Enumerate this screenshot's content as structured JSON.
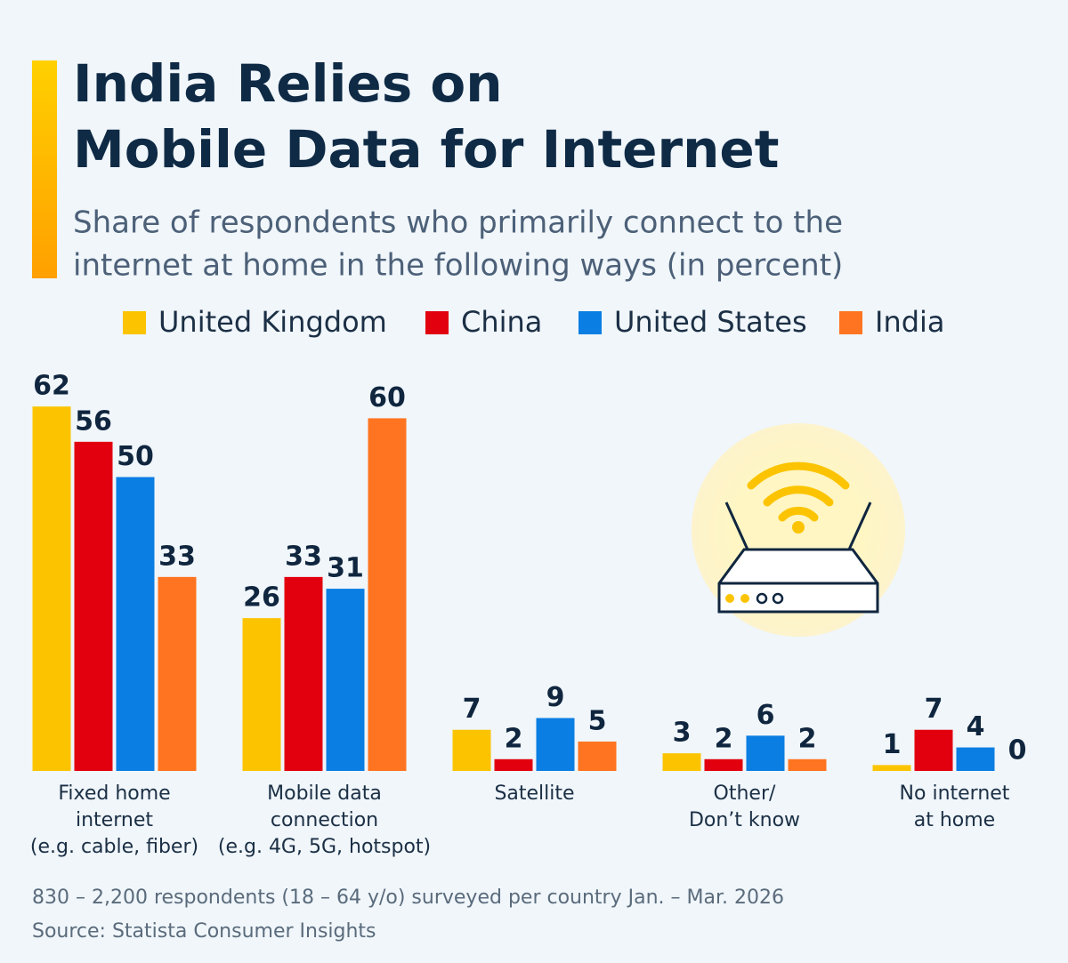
{
  "chart_data": {
    "type": "bar",
    "title": [
      "India Relies on",
      "Mobile Data for Internet"
    ],
    "subtitle": [
      "Share of respondents who primarily connect to the",
      "internet at home in the following ways (in percent)"
    ],
    "categories": [
      [
        "Fixed home",
        "internet",
        "(e.g. cable, fiber)"
      ],
      [
        "Mobile data",
        "connection",
        "(e.g. 4G, 5G, hotspot)"
      ],
      [
        "Satellite"
      ],
      [
        "Other/",
        "Don’t know"
      ],
      [
        "No internet",
        "at home"
      ]
    ],
    "series": [
      {
        "name": "United Kingdom",
        "color": "#fcc400",
        "values": [
          62,
          26,
          7,
          3,
          1
        ]
      },
      {
        "name": "China",
        "color": "#e2000f",
        "values": [
          56,
          33,
          2,
          2,
          7
        ]
      },
      {
        "name": "United States",
        "color": "#0b7ee3",
        "values": [
          50,
          31,
          9,
          6,
          4
        ]
      },
      {
        "name": "India",
        "color": "#ff7420",
        "values": [
          33,
          60,
          5,
          2,
          0
        ]
      }
    ],
    "footer": [
      "830 – 2,200 respondents (18 – 64 y/o) surveyed per country Jan. – Mar. 2026",
      "Source: Statista Consumer Insights"
    ]
  }
}
